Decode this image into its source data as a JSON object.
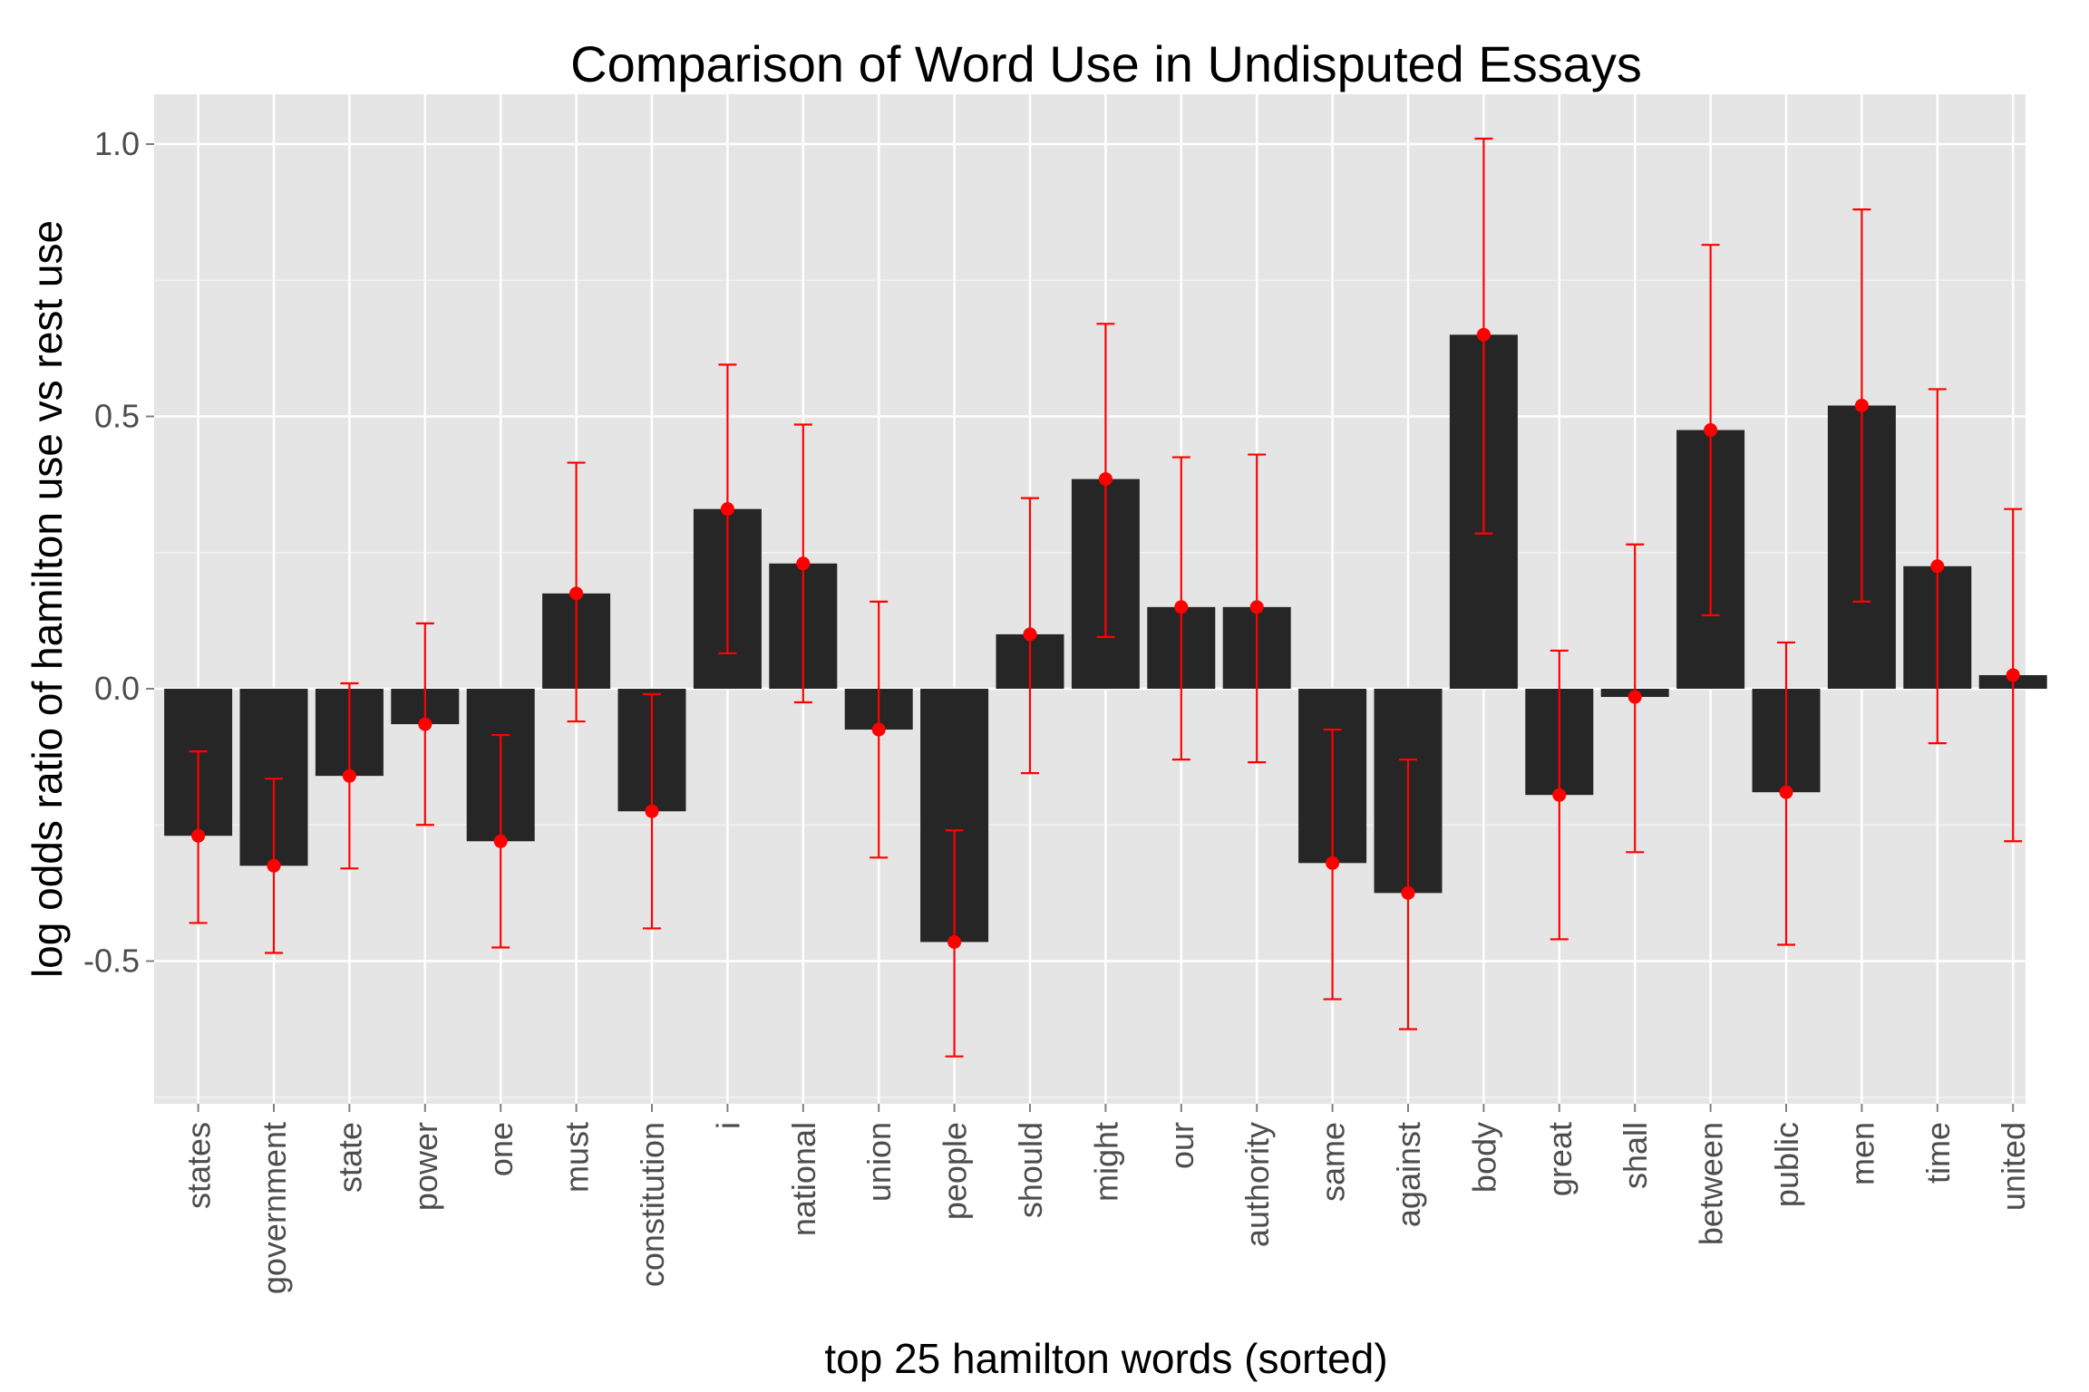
{
  "chart_data": {
    "type": "bar",
    "title": "Comparison of Word Use in Undisputed Essays",
    "xlabel": "top 25 hamilton words (sorted)",
    "ylabel": "log odds ratio of hamilton use vs rest use",
    "ylim": [
      -0.75,
      1.1
    ],
    "yticks": [
      -0.5,
      0.0,
      0.5,
      1.0
    ],
    "ytick_labels": [
      "-0.5",
      "0.0",
      "0.5",
      "1.0"
    ],
    "grid": true,
    "categories": [
      "states",
      "government",
      "state",
      "power",
      "one",
      "must",
      "constitution",
      "i",
      "national",
      "union",
      "people",
      "should",
      "might",
      "our",
      "authority",
      "same",
      "against",
      "body",
      "great",
      "shall",
      "between",
      "public",
      "men",
      "time",
      "united"
    ],
    "values": [
      -0.27,
      -0.325,
      -0.16,
      -0.065,
      -0.28,
      0.175,
      -0.225,
      0.33,
      0.23,
      -0.075,
      -0.465,
      0.1,
      0.385,
      0.15,
      0.15,
      -0.32,
      -0.375,
      0.65,
      -0.195,
      -0.015,
      0.475,
      -0.19,
      0.52,
      0.225,
      0.025
    ],
    "error_low": [
      -0.43,
      -0.485,
      -0.33,
      -0.25,
      -0.475,
      -0.06,
      -0.44,
      0.065,
      -0.025,
      -0.31,
      -0.675,
      -0.155,
      0.095,
      -0.13,
      -0.135,
      -0.57,
      -0.625,
      0.285,
      -0.46,
      -0.3,
      0.135,
      -0.47,
      0.16,
      -0.1,
      -0.28
    ],
    "error_high": [
      -0.115,
      -0.165,
      0.01,
      0.12,
      -0.085,
      0.415,
      -0.01,
      0.595,
      0.485,
      0.16,
      -0.26,
      0.35,
      0.67,
      0.425,
      0.43,
      -0.075,
      -0.13,
      1.01,
      0.07,
      0.265,
      0.815,
      0.085,
      0.88,
      0.55,
      0.33
    ],
    "colors": {
      "bar": "#262626",
      "error": "#ff0000",
      "panel": "#e5e5e5",
      "grid_major": "#ffffff",
      "grid_minor": "#f2f2f2"
    }
  }
}
